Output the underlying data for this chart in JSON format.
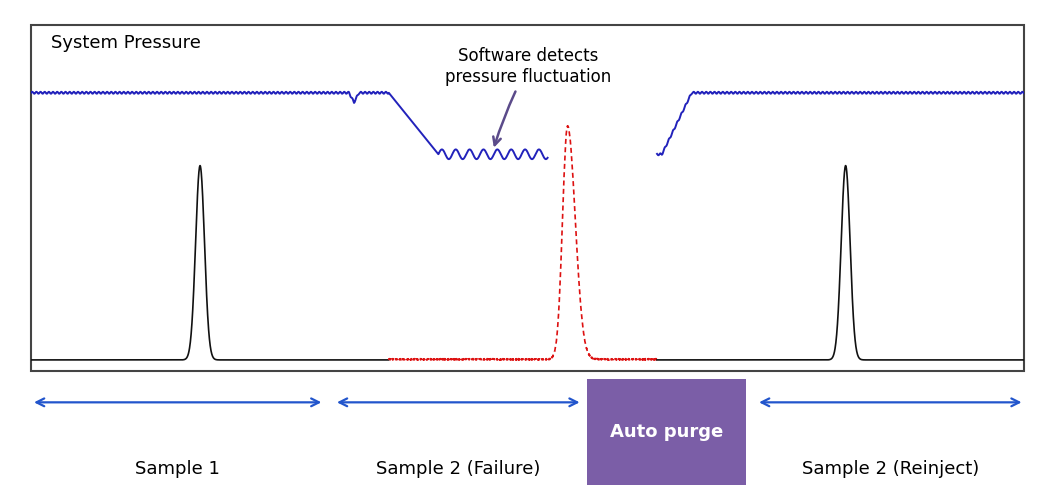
{
  "bg_color": "#ffffff",
  "chart_border_color": "#444444",
  "title_system_pressure": "System Pressure",
  "title_annotation": "Software detects\npressure fluctuation",
  "annotation_color": "#5b4b8a",
  "blue_line_color": "#2222bb",
  "black_line_color": "#111111",
  "red_line_color": "#dd1111",
  "arrow_color": "#5b4b8a",
  "label1": "Sample 1",
  "label2": "Sample 2 (Failure)",
  "label3": "Auto purge",
  "label4": "Sample 2 (Reinject)",
  "purge_box_color": "#7b5ea7",
  "purge_text_color": "#ffffff",
  "arrow_label_color": "#2255cc",
  "figsize": [
    10.4,
    4.95
  ],
  "dpi": 100,
  "pressure_high": 0.84,
  "pressure_low": 0.65,
  "baseline_y": 0.015
}
